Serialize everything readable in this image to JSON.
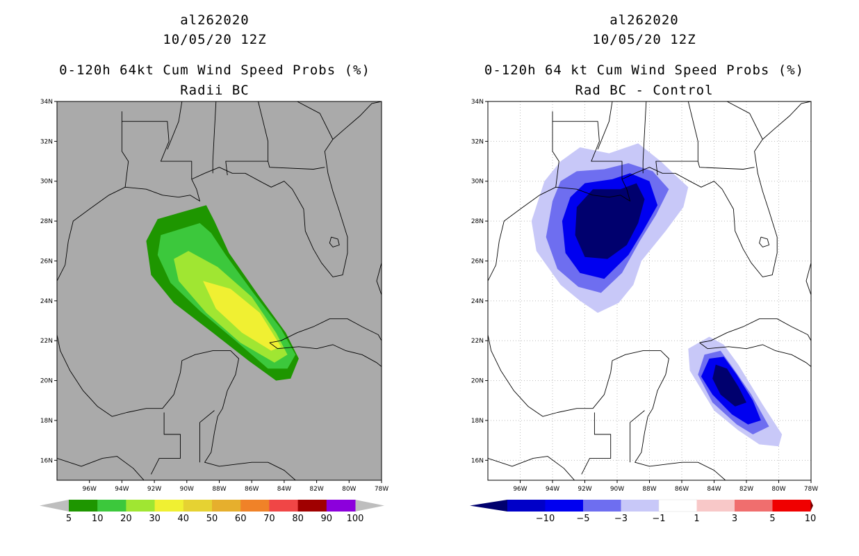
{
  "chart_data": [
    {
      "type": "heatmap",
      "storm_id": "al262020",
      "datetime": "10/05/20 12Z",
      "title": "0-120h 64kt Cum Wind Speed Probs (%)",
      "subtitle": "Radii BC",
      "lat_ticks": [
        "34N",
        "32N",
        "30N",
        "28N",
        "26N",
        "24N",
        "22N",
        "20N",
        "18N",
        "16N"
      ],
      "lon_ticks": [
        "96W",
        "94W",
        "92W",
        "90W",
        "88W",
        "86W",
        "84W",
        "82W",
        "80W",
        "78W"
      ],
      "lon_range": [
        -98,
        -78
      ],
      "lat_range": [
        15,
        34
      ],
      "background_color": "#aaaaaa",
      "grid": false,
      "colorbar": {
        "labels": [
          "5",
          "10",
          "20",
          "30",
          "40",
          "50",
          "60",
          "70",
          "80",
          "90",
          "100"
        ],
        "colors": [
          "#1e9600",
          "#3cc83c",
          "#a0e632",
          "#f0f032",
          "#e6d232",
          "#e6af2d",
          "#f08228",
          "#f04646",
          "#a00000",
          "#8c00dc"
        ],
        "end_color": "#bebebe"
      },
      "contours": [
        {
          "level": 5,
          "color": "#1e9600",
          "points": [
            [
              -88.8,
              28.8
            ],
            [
              -91.8,
              28.1
            ],
            [
              -92.5,
              27.0
            ],
            [
              -92.2,
              25.3
            ],
            [
              -90.8,
              23.9
            ],
            [
              -88.4,
              22.4
            ],
            [
              -86.2,
              21.0
            ],
            [
              -84.5,
              20.0
            ],
            [
              -83.6,
              20.1
            ],
            [
              -83.1,
              21.1
            ],
            [
              -83.9,
              22.4
            ],
            [
              -85.6,
              24.3
            ],
            [
              -87.4,
              26.4
            ],
            [
              -88.3,
              28.0
            ]
          ]
        },
        {
          "level": 10,
          "color": "#3cc83c",
          "points": [
            [
              -89.2,
              27.9
            ],
            [
              -91.6,
              27.3
            ],
            [
              -91.8,
              26.3
            ],
            [
              -91.0,
              24.9
            ],
            [
              -89.2,
              23.5
            ],
            [
              -87.0,
              22.0
            ],
            [
              -85.0,
              20.6
            ],
            [
              -83.8,
              20.6
            ],
            [
              -83.3,
              21.3
            ],
            [
              -84.2,
              22.6
            ],
            [
              -85.9,
              24.4
            ],
            [
              -87.6,
              26.3
            ],
            [
              -88.5,
              27.4
            ]
          ]
        },
        {
          "level": 20,
          "color": "#a0e632",
          "points": [
            [
              -89.9,
              26.5
            ],
            [
              -90.8,
              26.1
            ],
            [
              -90.5,
              25.0
            ],
            [
              -88.8,
              23.4
            ],
            [
              -86.7,
              21.9
            ],
            [
              -84.6,
              20.9
            ],
            [
              -83.8,
              21.3
            ],
            [
              -84.5,
              22.4
            ],
            [
              -86.0,
              24.2
            ],
            [
              -88.1,
              25.7
            ]
          ]
        },
        {
          "level": 30,
          "color": "#f0f032",
          "points": [
            [
              -89.0,
              25.0
            ],
            [
              -88.2,
              23.6
            ],
            [
              -86.6,
              22.4
            ],
            [
              -84.8,
              21.5
            ],
            [
              -84.2,
              21.7
            ],
            [
              -85.5,
              23.4
            ],
            [
              -87.3,
              24.6
            ]
          ]
        }
      ]
    },
    {
      "type": "heatmap",
      "storm_id": "al262020",
      "datetime": "10/05/20 12Z",
      "title": "0-120h 64 kt Cum Wind Speed Probs (%)",
      "subtitle": "Rad BC - Control",
      "lat_ticks": [
        "34N",
        "32N",
        "30N",
        "28N",
        "26N",
        "24N",
        "22N",
        "20N",
        "18N",
        "16N"
      ],
      "lon_ticks": [
        "96W",
        "94W",
        "92W",
        "90W",
        "88W",
        "86W",
        "84W",
        "82W",
        "80W",
        "78W"
      ],
      "lon_range": [
        -98,
        -78
      ],
      "lat_range": [
        15,
        34
      ],
      "background_color": "#ffffff",
      "grid": true,
      "colorbar": {
        "labels": [
          "−10",
          "−5",
          "−3",
          "−1",
          "1",
          "3",
          "5",
          "10"
        ],
        "colors": [
          "#0000c8",
          "#0000f0",
          "#6e6ef0",
          "#c8c8f8",
          "#ffffff",
          "#f8c8c8",
          "#f06e6e",
          "#f00000",
          "#f00000"
        ],
        "end_left": "#00006e",
        "end_right": "#6e0000"
      },
      "contours": [
        {
          "level": -1,
          "color": "#c8c8f8",
          "points": [
            [
              -92.3,
              31.7
            ],
            [
              -90.5,
              31.4
            ],
            [
              -88.7,
              31.9
            ],
            [
              -87.3,
              31.0
            ],
            [
              -86.4,
              30.3
            ],
            [
              -85.6,
              29.7
            ],
            [
              -85.9,
              28.7
            ],
            [
              -87.0,
              27.5
            ],
            [
              -88.5,
              26.0
            ],
            [
              -89.0,
              24.8
            ],
            [
              -89.9,
              23.9
            ],
            [
              -91.2,
              23.4
            ],
            [
              -92.3,
              24.0
            ],
            [
              -93.5,
              24.8
            ],
            [
              -95.0,
              26.5
            ],
            [
              -95.3,
              28.0
            ],
            [
              -94.5,
              30.0
            ],
            [
              -93.5,
              31.0
            ]
          ]
        },
        {
          "level": -3,
          "color": "#6e6ef0",
          "points": [
            [
              -92.5,
              30.5
            ],
            [
              -90.8,
              30.6
            ],
            [
              -89.3,
              30.9
            ],
            [
              -87.8,
              30.5
            ],
            [
              -86.8,
              29.6
            ],
            [
              -87.6,
              28.3
            ],
            [
              -88.6,
              27.0
            ],
            [
              -89.7,
              25.4
            ],
            [
              -91.0,
              24.4
            ],
            [
              -92.4,
              24.7
            ],
            [
              -93.7,
              25.6
            ],
            [
              -94.4,
              27.2
            ],
            [
              -94.0,
              29.0
            ],
            [
              -93.5,
              30.0
            ]
          ]
        },
        {
          "level": -5,
          "color": "#0000f0",
          "points": [
            [
              -92.0,
              29.9
            ],
            [
              -90.3,
              30.1
            ],
            [
              -89.2,
              30.4
            ],
            [
              -88.0,
              30.0
            ],
            [
              -87.5,
              28.8
            ],
            [
              -88.4,
              27.5
            ],
            [
              -89.3,
              26.3
            ],
            [
              -90.8,
              25.1
            ],
            [
              -92.3,
              25.4
            ],
            [
              -93.2,
              26.4
            ],
            [
              -93.4,
              28.0
            ],
            [
              -92.9,
              29.2
            ]
          ]
        },
        {
          "level": -10,
          "color": "#00006e",
          "points": [
            [
              -91.5,
              29.6
            ],
            [
              -89.8,
              29.6
            ],
            [
              -88.8,
              29.9
            ],
            [
              -88.3,
              29.1
            ],
            [
              -88.7,
              27.9
            ],
            [
              -89.4,
              26.8
            ],
            [
              -90.6,
              26.1
            ],
            [
              -92.0,
              26.2
            ],
            [
              -92.6,
              27.3
            ],
            [
              -92.5,
              28.7
            ]
          ]
        },
        {
          "level": -1,
          "color": "#c8c8f8",
          "points": [
            [
              -85.6,
              21.6
            ],
            [
              -84.3,
              22.2
            ],
            [
              -83.4,
              21.8
            ],
            [
              -82.5,
              20.8
            ],
            [
              -81.0,
              18.8
            ],
            [
              -79.8,
              17.3
            ],
            [
              -80.0,
              16.7
            ],
            [
              -81.2,
              16.8
            ],
            [
              -82.5,
              17.5
            ],
            [
              -84.0,
              18.5
            ],
            [
              -85.5,
              20.5
            ]
          ]
        },
        {
          "level": -3,
          "color": "#6e6ef0",
          "points": [
            [
              -84.6,
              21.3
            ],
            [
              -83.6,
              21.5
            ],
            [
              -82.8,
              20.6
            ],
            [
              -81.7,
              19.3
            ],
            [
              -80.6,
              17.7
            ],
            [
              -81.6,
              17.3
            ],
            [
              -82.6,
              17.8
            ],
            [
              -84.1,
              18.9
            ],
            [
              -85.0,
              20.3
            ]
          ]
        },
        {
          "level": -5,
          "color": "#0000f0",
          "points": [
            [
              -84.3,
              21.1
            ],
            [
              -83.4,
              21.2
            ],
            [
              -82.6,
              20.3
            ],
            [
              -81.6,
              19.0
            ],
            [
              -81.1,
              18.0
            ],
            [
              -81.9,
              17.8
            ],
            [
              -82.9,
              18.3
            ],
            [
              -84.1,
              19.3
            ],
            [
              -84.8,
              20.2
            ]
          ]
        },
        {
          "level": -10,
          "color": "#00006e",
          "points": [
            [
              -83.9,
              20.8
            ],
            [
              -83.2,
              20.6
            ],
            [
              -82.5,
              19.7
            ],
            [
              -82.0,
              18.9
            ],
            [
              -82.7,
              18.7
            ],
            [
              -83.6,
              19.3
            ],
            [
              -84.1,
              20.1
            ]
          ]
        }
      ]
    }
  ]
}
